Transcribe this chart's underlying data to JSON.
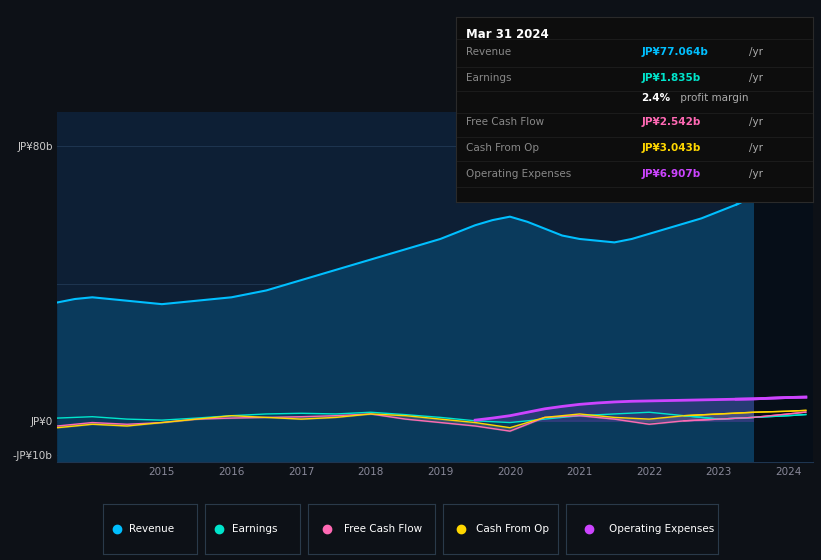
{
  "bg_color": "#0d1117",
  "plot_bg_color": "#0d1f35",
  "grid_color": "#1e3550",
  "text_color": "#888899",
  "revenue_color": "#00bfff",
  "revenue_fill_color": "#0a3a5c",
  "earnings_color": "#00e5cc",
  "free_cash_flow_color": "#ff69b4",
  "cash_from_op_color": "#ffd700",
  "operating_exp_color": "#cc44ff",
  "revenue_x": [
    2013.5,
    2013.75,
    2014.0,
    2014.25,
    2014.5,
    2014.75,
    2015.0,
    2015.25,
    2015.5,
    2015.75,
    2016.0,
    2016.25,
    2016.5,
    2016.75,
    2017.0,
    2017.25,
    2017.5,
    2017.75,
    2018.0,
    2018.25,
    2018.5,
    2018.75,
    2019.0,
    2019.25,
    2019.5,
    2019.75,
    2020.0,
    2020.25,
    2020.5,
    2020.75,
    2021.0,
    2021.25,
    2021.5,
    2021.75,
    2022.0,
    2022.25,
    2022.5,
    2022.75,
    2023.0,
    2023.25,
    2023.5,
    2023.75,
    2024.0,
    2024.25
  ],
  "revenue_y": [
    34.5,
    35.5,
    36.0,
    35.5,
    35.0,
    34.5,
    34.0,
    34.5,
    35.0,
    35.5,
    36.0,
    37.0,
    38.0,
    39.5,
    41.0,
    42.5,
    44.0,
    45.5,
    47.0,
    48.5,
    50.0,
    51.5,
    53.0,
    55.0,
    57.0,
    58.5,
    59.5,
    58.0,
    56.0,
    54.0,
    53.0,
    52.5,
    52.0,
    53.0,
    54.5,
    56.0,
    57.5,
    59.0,
    61.0,
    63.0,
    65.5,
    68.0,
    72.0,
    77.0
  ],
  "earnings_x": [
    2013.5,
    2014.0,
    2014.5,
    2015.0,
    2015.5,
    2016.0,
    2016.5,
    2017.0,
    2017.5,
    2018.0,
    2018.5,
    2019.0,
    2019.5,
    2020.0,
    2020.5,
    2021.0,
    2021.5,
    2022.0,
    2022.5,
    2023.0,
    2023.5,
    2024.0,
    2024.25
  ],
  "earnings_y": [
    0.8,
    1.2,
    0.5,
    0.2,
    0.8,
    1.5,
    2.0,
    2.2,
    2.0,
    2.5,
    1.8,
    1.0,
    0.0,
    -0.5,
    0.5,
    1.5,
    2.0,
    2.5,
    1.5,
    0.5,
    1.0,
    1.5,
    1.835
  ],
  "fcf_x": [
    2013.5,
    2014.0,
    2014.5,
    2015.0,
    2015.5,
    2016.0,
    2016.5,
    2017.0,
    2017.5,
    2018.0,
    2018.5,
    2019.0,
    2019.5,
    2020.0,
    2020.5,
    2021.0,
    2021.5,
    2022.0,
    2022.5,
    2023.0,
    2023.5,
    2024.0,
    2024.25
  ],
  "fcf_y": [
    -1.5,
    -0.5,
    -1.0,
    -0.5,
    0.5,
    0.8,
    1.0,
    1.2,
    1.5,
    2.0,
    0.5,
    -0.5,
    -1.5,
    -3.0,
    1.0,
    1.5,
    0.5,
    -1.0,
    0.0,
    0.5,
    1.0,
    2.0,
    2.542
  ],
  "cashop_x": [
    2013.5,
    2014.0,
    2014.5,
    2015.0,
    2015.5,
    2016.0,
    2016.5,
    2017.0,
    2017.5,
    2018.0,
    2018.5,
    2019.0,
    2019.5,
    2020.0,
    2020.5,
    2021.0,
    2021.5,
    2022.0,
    2022.5,
    2023.0,
    2023.5,
    2024.0,
    2024.25
  ],
  "cashop_y": [
    -2.0,
    -1.0,
    -1.5,
    -0.5,
    0.5,
    1.5,
    1.0,
    0.5,
    1.0,
    2.0,
    1.5,
    0.5,
    -0.5,
    -2.0,
    1.0,
    2.0,
    1.0,
    0.5,
    1.5,
    2.0,
    2.5,
    2.8,
    3.043
  ],
  "opex_x": [
    2019.5,
    2019.75,
    2020.0,
    2020.25,
    2020.5,
    2020.75,
    2021.0,
    2021.25,
    2021.5,
    2021.75,
    2022.0,
    2022.25,
    2022.5,
    2022.75,
    2023.0,
    2023.25,
    2023.5,
    2023.75,
    2024.0,
    2024.25
  ],
  "opex_y": [
    0.2,
    0.8,
    1.5,
    2.5,
    3.5,
    4.2,
    4.8,
    5.2,
    5.5,
    5.7,
    5.8,
    5.9,
    6.0,
    6.1,
    6.2,
    6.3,
    6.4,
    6.6,
    6.8,
    6.907
  ],
  "ylim_min": -12,
  "ylim_max": 90,
  "xlim_min": 2013.5,
  "xlim_max": 2024.35,
  "xtick_positions": [
    2015,
    2016,
    2017,
    2018,
    2019,
    2020,
    2021,
    2022,
    2023,
    2024
  ],
  "xtick_labels": [
    "2015",
    "2016",
    "2017",
    "2018",
    "2019",
    "2020",
    "2021",
    "2022",
    "2023",
    "2024"
  ],
  "ytick_positions": [
    80,
    0,
    -10
  ],
  "ytick_labels": [
    "JP¥80b",
    "JP¥0",
    "-JP¥10b"
  ],
  "tooltip_date": "Mar 31 2024",
  "tooltip_rows": [
    {
      "label": "Revenue",
      "value": "JP¥77.064b",
      "unit": "/yr",
      "color": "#00bfff"
    },
    {
      "label": "Earnings",
      "value": "JP¥1.835b",
      "unit": "/yr",
      "color": "#00e5cc"
    },
    {
      "label": "",
      "value": "2.4%",
      "unit": " profit margin",
      "color": "#ffffff"
    },
    {
      "label": "Free Cash Flow",
      "value": "JP¥2.542b",
      "unit": "/yr",
      "color": "#ff69b4"
    },
    {
      "label": "Cash From Op",
      "value": "JP¥3.043b",
      "unit": "/yr",
      "color": "#ffd700"
    },
    {
      "label": "Operating Expenses",
      "value": "JP¥6.907b",
      "unit": "/yr",
      "color": "#cc44ff"
    }
  ],
  "legend_items": [
    {
      "label": "Revenue",
      "color": "#00bfff"
    },
    {
      "label": "Earnings",
      "color": "#00e5cc"
    },
    {
      "label": "Free Cash Flow",
      "color": "#ff69b4"
    },
    {
      "label": "Cash From Op",
      "color": "#ffd700"
    },
    {
      "label": "Operating Expenses",
      "color": "#cc44ff"
    }
  ]
}
